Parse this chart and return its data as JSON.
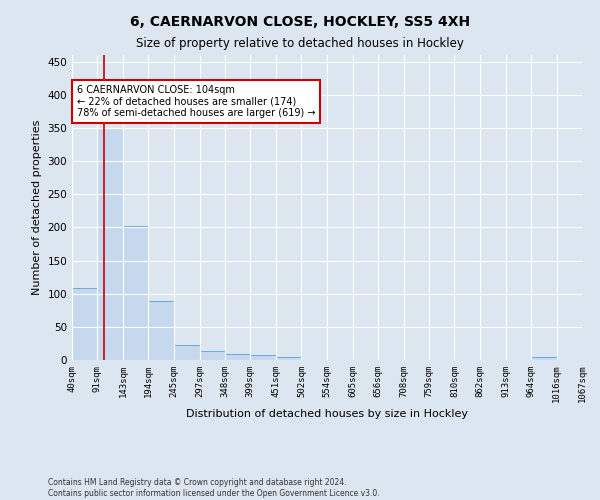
{
  "title": "6, CAERNARVON CLOSE, HOCKLEY, SS5 4XH",
  "subtitle": "Size of property relative to detached houses in Hockley",
  "xlabel": "Distribution of detached houses by size in Hockley",
  "ylabel": "Number of detached properties",
  "bin_edges": [
    40,
    91,
    143,
    194,
    245,
    297,
    348,
    399,
    451,
    502,
    554,
    605,
    656,
    708,
    759,
    810,
    862,
    913,
    964,
    1016,
    1067
  ],
  "bar_heights": [
    108,
    350,
    202,
    89,
    23,
    14,
    9,
    8,
    4,
    0,
    0,
    0,
    0,
    0,
    0,
    0,
    0,
    0,
    5,
    0
  ],
  "bar_color": "#c5d8ee",
  "bar_edge_color": "#6aaad4",
  "property_size": 104,
  "property_line_color": "#cc0000",
  "annotation_text": "6 CAERNARVON CLOSE: 104sqm\n← 22% of detached houses are smaller (174)\n78% of semi-detached houses are larger (619) →",
  "annotation_box_color": "#cc0000",
  "annotation_box_facecolor": "white",
  "ylim": [
    0,
    460
  ],
  "yticks": [
    0,
    50,
    100,
    150,
    200,
    250,
    300,
    350,
    400,
    450
  ],
  "background_color": "#dce6f0",
  "plot_background_color": "#dce6f0",
  "footer_text": "Contains HM Land Registry data © Crown copyright and database right 2024.\nContains public sector information licensed under the Open Government Licence v3.0.",
  "tick_label_size": 6.5,
  "title_fontsize": 10,
  "subtitle_fontsize": 8.5,
  "ylabel_fontsize": 8,
  "xlabel_fontsize": 8
}
